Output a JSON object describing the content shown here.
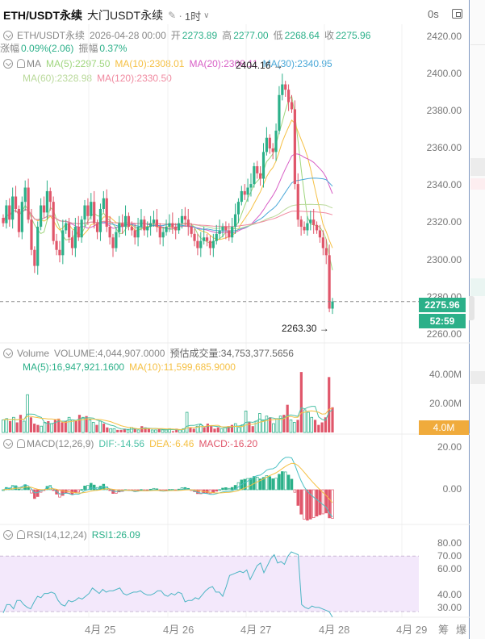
{
  "header": {
    "symbol": "ETH/USDT永续",
    "subtitle": "大门USDT永续",
    "edit_icon": "✎",
    "separator": "·",
    "timeframe": "1时",
    "timeframe_chevron": "∨",
    "countdown": "0s"
  },
  "ohlc": {
    "symbol": "ETH/USDT永续",
    "datetime": "2026-04-28 00:00",
    "open_label": "开",
    "open": "2273.89",
    "high_label": "高",
    "high": "2277.00",
    "low_label": "低",
    "low": "2268.64",
    "close_label": "收",
    "close": "2275.96",
    "change_label": "涨幅",
    "change": "0.09%(2.06)",
    "amplitude_label": "振幅",
    "amplitude": "0.37%"
  },
  "ma": {
    "label": "MA",
    "items": [
      {
        "text": "MA(5):2297.50",
        "color": "#9fd67e"
      },
      {
        "text": "MA(10):2308.01",
        "color": "#f5c044"
      },
      {
        "text": "MA(20):2308.11",
        "color": "#d85fc6"
      },
      {
        "text": "MA(30):2340.95",
        "color": "#4aa8d8"
      },
      {
        "text": "MA(60):2328.98",
        "color": "#b9d99a"
      },
      {
        "text": "MA(120):2330.50",
        "color": "#f08aa0"
      }
    ]
  },
  "annotations": {
    "high_marker": "2404.16 →",
    "low_marker": "2263.30 →"
  },
  "price_axis": [
    "2420.00",
    "2400.00",
    "2380.00",
    "2360.00",
    "2340.00",
    "2320.00",
    "2300.00",
    "2280.00",
    "2260.00"
  ],
  "last_price": "2275.96",
  "bar_countdown": "52:59",
  "volume": {
    "label": "Volume",
    "value": "VOLUME:4,044,907.0000",
    "estimate": "预估成交量:34,753,377.5656",
    "ma5": "MA(5):16,947,921.1600",
    "ma10": "MA(10):11,599,685.9000",
    "axis": [
      "40.00M",
      "20.00M"
    ],
    "current_tag": "4.0M"
  },
  "macd": {
    "label": "MACD(12,26,9)",
    "dif": "DIF:-14.56",
    "dea": "DEA:-6.46",
    "macd": "MACD:-16.20",
    "axis": [
      "20.00",
      "0.00"
    ]
  },
  "rsi": {
    "label": "RSI(14,12,24)",
    "rsi1": "RSI1:26.09",
    "axis": [
      "80.00",
      "70.00",
      "60.00",
      "40.00",
      "30.00"
    ]
  },
  "x_axis": [
    "4月 25",
    "4月 26",
    "4月 27",
    "4月 28",
    "4月 29"
  ],
  "tools": [
    "筹",
    "爆"
  ],
  "colors": {
    "up": "#2bb089",
    "down": "#e0566a",
    "rsi_band": "#f3e8fb",
    "rsi_line": "#4cb5c4",
    "grid": "#f2f2f2"
  },
  "chart_data": {
    "type": "candlestick",
    "title": "ETH/USDT永续 1H",
    "x_ticks": [
      "4月 25",
      "4月 26",
      "4月 27",
      "4月 28",
      "4月 29"
    ],
    "price_range": [
      2255,
      2425
    ],
    "last_price": 2275.96,
    "period_high": 2404.16,
    "period_low": 2263.3,
    "ma": {
      "MA5": 2297.5,
      "MA10": 2308.01,
      "MA20": 2308.11,
      "MA30": 2340.95,
      "MA60": 2328.98,
      "MA120": 2330.5
    },
    "close_series": [
      2320,
      2330,
      2322,
      2335,
      2328,
      2315,
      2332,
      2340,
      2322,
      2305,
      2296,
      2318,
      2330,
      2326,
      2338,
      2332,
      2310,
      2305,
      2302,
      2316,
      2320,
      2312,
      2306,
      2318,
      2312,
      2322,
      2330,
      2324,
      2332,
      2320,
      2315,
      2328,
      2334,
      2318,
      2312,
      2306,
      2315,
      2320,
      2318,
      2324,
      2318,
      2316,
      2312,
      2318,
      2322,
      2316,
      2318,
      2320,
      2322,
      2318,
      2312,
      2315,
      2318,
      2320,
      2318,
      2316,
      2320,
      2324,
      2322,
      2318,
      2314,
      2310,
      2306,
      2310,
      2312,
      2310,
      2306,
      2310,
      2314,
      2316,
      2318,
      2316,
      2312,
      2318,
      2325,
      2332,
      2338,
      2336,
      2340,
      2342,
      2352,
      2348,
      2345,
      2360,
      2368,
      2362,
      2360,
      2372,
      2392,
      2398,
      2395,
      2388,
      2384,
      2342,
      2322,
      2318,
      2316,
      2320,
      2322,
      2319,
      2316,
      2312,
      2306,
      2302,
      2272,
      2276
    ],
    "volume_series_M": [
      10,
      11,
      9,
      12,
      8,
      14,
      9,
      30,
      12,
      7,
      6,
      5,
      8,
      9,
      7,
      10,
      11,
      8,
      9,
      12,
      10,
      9,
      14,
      12,
      13,
      10,
      8,
      6,
      9,
      7,
      4,
      3,
      3,
      2,
      2,
      3,
      2,
      4,
      3,
      2,
      5,
      4,
      3,
      2,
      2,
      3,
      2,
      2,
      3,
      1,
      3,
      2,
      3,
      16,
      4,
      3,
      5,
      6,
      4,
      7,
      5,
      3,
      4,
      3,
      4,
      5,
      6,
      7,
      4,
      6,
      17,
      8,
      5,
      9,
      15,
      10,
      13,
      12,
      7,
      11,
      13,
      14,
      22,
      10,
      8,
      10,
      48,
      18,
      16,
      12,
      10,
      6,
      8,
      12,
      44,
      20
    ],
    "macd_axis": [
      20.0,
      0.0
    ],
    "macd": {
      "DIF": -14.56,
      "DEA": -6.46,
      "MACD": -16.2
    },
    "rsi_axis": [
      30,
      80
    ],
    "rsi_band": [
      30,
      70
    ],
    "rsi_series": [
      29,
      35,
      35,
      32,
      38,
      38,
      35,
      33,
      32,
      37,
      41,
      40,
      43,
      43,
      44,
      43,
      38,
      35,
      34,
      38,
      37,
      38,
      40,
      39,
      41,
      43,
      47,
      45,
      43,
      46,
      44,
      45,
      45,
      46,
      47,
      43,
      42,
      43,
      44,
      44,
      45,
      43,
      42,
      42,
      43,
      45,
      45,
      42,
      41,
      43,
      42,
      44,
      43,
      37,
      38,
      38,
      40,
      39,
      42,
      45,
      47,
      48,
      44,
      44,
      41,
      48,
      56,
      57,
      58,
      59,
      58,
      60,
      53,
      58,
      63,
      65,
      58,
      63,
      68,
      71,
      65,
      66,
      64,
      70,
      73,
      72,
      71,
      35,
      33,
      32,
      34,
      33,
      33,
      32,
      31,
      30,
      26
    ],
    "rsi1": 26.09
  }
}
